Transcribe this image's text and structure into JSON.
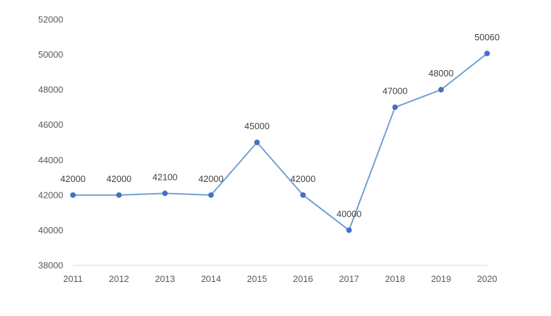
{
  "chart_data": {
    "type": "line",
    "title": "",
    "xlabel": "",
    "ylabel": "",
    "x": [
      "2011",
      "2012",
      "2013",
      "2014",
      "2015",
      "2016",
      "2017",
      "2018",
      "2019",
      "2020"
    ],
    "series": [
      {
        "values": [
          42000,
          42000,
          42100,
          42000,
          45000,
          42000,
          40000,
          47000,
          48000,
          50060
        ],
        "labels": [
          "42000",
          "42000",
          "42100",
          "42000",
          "45000",
          "42000",
          "40000",
          "47000",
          "48000",
          "50060"
        ],
        "color": "#4472c4",
        "line_color": "#6f9fd0"
      }
    ],
    "ylim": [
      38000,
      52000
    ],
    "yticks": [
      38000,
      40000,
      42000,
      44000,
      46000,
      48000,
      50000,
      52000
    ],
    "ytick_labels": [
      "38000",
      "40000",
      "42000",
      "44000",
      "46000",
      "48000",
      "50000",
      "52000"
    ],
    "grid": false,
    "legend": "none",
    "data_labels": "above",
    "axis_color": "#d9d9d9"
  }
}
